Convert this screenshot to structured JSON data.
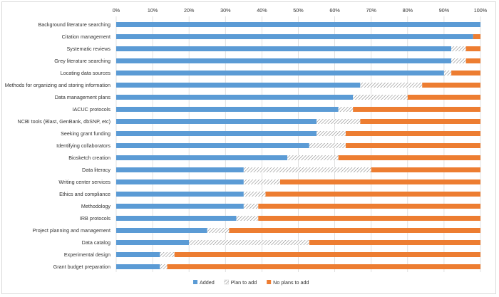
{
  "chart_data": {
    "type": "bar",
    "stacked": true,
    "orientation": "horizontal",
    "percent_stacked": true,
    "categories": [
      "Background literature searching",
      "Citation management",
      "Systematic reviews",
      "Grey literature searching",
      "Locating data sources",
      "Methods for organizing and storing information",
      "Data management plans",
      "IACUC protocols",
      "NCBI tools (Blast, GenBank, dbSNP, etc)",
      "Seeking grant funding",
      "Identifying collaborators",
      "Biosketch creation",
      "Data literacy",
      "Writing center services",
      "Ethics and compliance",
      "Methodology",
      "IRB protocols",
      "Project planning and management",
      "Data catalog",
      "Experimental design",
      "Grant budget preparation"
    ],
    "series": [
      {
        "name": "Added",
        "color": "#5b9bd5",
        "pattern": "solid",
        "values": [
          100,
          98,
          92,
          92,
          90,
          67,
          65,
          61,
          55,
          55,
          53,
          47,
          35,
          35,
          35,
          35,
          33,
          25,
          20,
          12,
          12
        ]
      },
      {
        "name": "Plan to add",
        "color": "#ffffff",
        "pattern": "diagonal-hatch",
        "values": [
          0,
          0,
          4,
          4,
          2,
          17,
          15,
          4,
          12,
          8,
          10,
          14,
          35,
          10,
          6,
          4,
          6,
          6,
          33,
          4,
          2
        ]
      },
      {
        "name": "No plans to add",
        "color": "#ed7d31",
        "pattern": "solid",
        "values": [
          0,
          2,
          4,
          4,
          8,
          16,
          20,
          35,
          33,
          37,
          37,
          39,
          30,
          55,
          59,
          61,
          61,
          69,
          47,
          84,
          86
        ]
      }
    ],
    "xlim": [
      0,
      100
    ],
    "x_ticks": [
      "0%",
      "10%",
      "20%",
      "30%",
      "40%",
      "50%",
      "60%",
      "70%",
      "80%",
      "90%",
      "100%"
    ],
    "x_axis_position": "top",
    "grid": true,
    "legend_position": "bottom",
    "title": "",
    "xlabel": "",
    "ylabel": ""
  }
}
